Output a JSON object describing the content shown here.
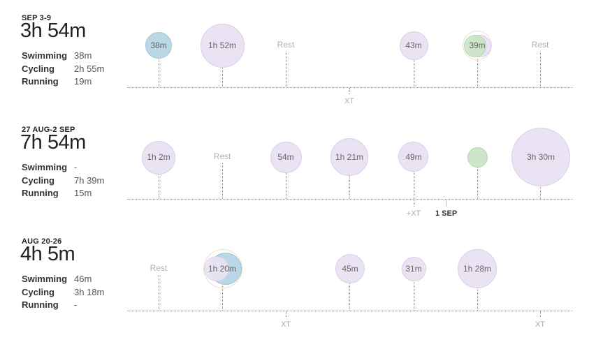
{
  "weeks": [
    {
      "label": "SEP 3-9",
      "total": "3h 54m",
      "sports": [
        {
          "name": "Swimming",
          "value": "38m"
        },
        {
          "name": "Cycling",
          "value": "2h 55m"
        },
        {
          "name": "Running",
          "value": "19m"
        }
      ],
      "days": [
        {
          "text": "38m",
          "type": "swim"
        },
        {
          "text": "1h 52m",
          "type": "cycle"
        },
        {
          "text": "Rest",
          "type": "rest"
        },
        {
          "text": "",
          "type": "none"
        },
        {
          "text": "43m",
          "type": "cycle"
        },
        {
          "text": "39m",
          "type": "run+cycle"
        },
        {
          "text": "Rest",
          "type": "rest"
        }
      ],
      "xt": [
        "XT"
      ]
    },
    {
      "label": "27 AUG-2 SEP",
      "total": "7h 54m",
      "sports": [
        {
          "name": "Swimming",
          "value": "-"
        },
        {
          "name": "Cycling",
          "value": "7h 39m"
        },
        {
          "name": "Running",
          "value": "15m"
        }
      ],
      "days": [
        {
          "text": "1h 2m",
          "type": "cycle"
        },
        {
          "text": "Rest",
          "type": "rest"
        },
        {
          "text": "54m",
          "type": "cycle"
        },
        {
          "text": "1h 21m",
          "type": "cycle"
        },
        {
          "text": "49m",
          "type": "cycle"
        },
        {
          "text": "",
          "type": "run"
        },
        {
          "text": "3h 30m",
          "type": "cycle"
        }
      ],
      "xt": [
        "+XT"
      ],
      "marker": "1 SEP"
    },
    {
      "label": "AUG 20-26",
      "total": "4h 5m",
      "sports": [
        {
          "name": "Swimming",
          "value": "46m"
        },
        {
          "name": "Cycling",
          "value": "3h 18m"
        },
        {
          "name": "Running",
          "value": "-"
        }
      ],
      "days": [
        {
          "text": "Rest",
          "type": "rest"
        },
        {
          "text": "1h 20m",
          "type": "cycle+swim"
        },
        {
          "text": "",
          "type": "none"
        },
        {
          "text": "45m",
          "type": "cycle"
        },
        {
          "text": "31m",
          "type": "cycle"
        },
        {
          "text": "1h 28m",
          "type": "cycle"
        },
        {
          "text": "",
          "type": "none"
        }
      ],
      "xt": [
        "XT",
        "XT"
      ]
    }
  ]
}
